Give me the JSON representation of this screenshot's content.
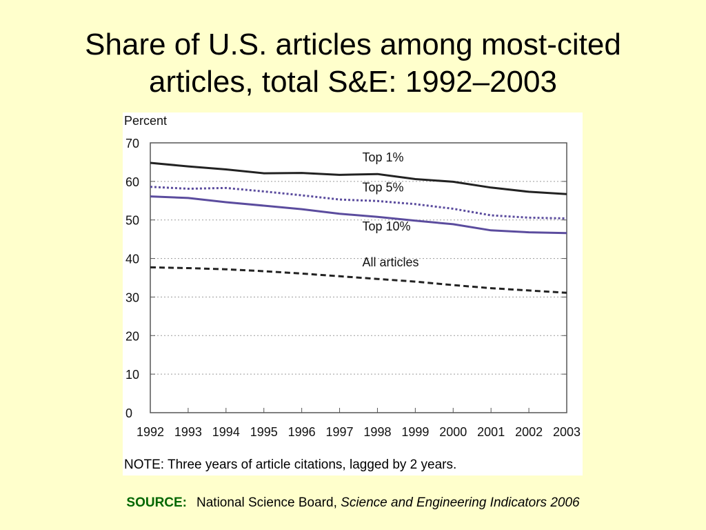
{
  "slide": {
    "title_line1": "Share of U.S. articles among most-cited",
    "title_line2": "articles, total S&E: 1992–2003",
    "source_label": "SOURCE:",
    "source_org": "National Science Board,",
    "source_publication": "Science and Engineering Indicators 2006"
  },
  "chart_data": {
    "type": "line",
    "ylabel": "Percent",
    "ylim": [
      0,
      70
    ],
    "yticks": [
      0,
      10,
      20,
      30,
      40,
      50,
      60,
      70
    ],
    "x": [
      1992,
      1993,
      1994,
      1995,
      1996,
      1997,
      1998,
      1999,
      2000,
      2001,
      2002,
      2003
    ],
    "grid": "horizontal dotted",
    "note": "NOTE: Three years of article citations, lagged by 2 years.",
    "series": [
      {
        "name": "Top 1%",
        "style": "solid",
        "color": "#222222",
        "values": [
          64.8,
          63.9,
          63.1,
          62.1,
          62.2,
          61.7,
          61.9,
          60.6,
          59.9,
          58.4,
          57.3,
          56.7
        ]
      },
      {
        "name": "Top 5%",
        "style": "dotted",
        "color": "#5b4c9e",
        "values": [
          58.6,
          58.1,
          58.3,
          57.4,
          56.4,
          55.3,
          54.9,
          54.1,
          52.9,
          51.2,
          50.6,
          50.4
        ]
      },
      {
        "name": "Top 10%",
        "style": "solid",
        "color": "#5b4c9e",
        "values": [
          56.1,
          55.7,
          54.6,
          53.7,
          52.8,
          51.6,
          50.8,
          49.8,
          48.9,
          47.3,
          46.8,
          46.6
        ]
      },
      {
        "name": "All articles",
        "style": "dashed",
        "color": "#222222",
        "values": [
          37.7,
          37.5,
          37.2,
          36.7,
          36.1,
          35.4,
          34.7,
          34.0,
          33.1,
          32.3,
          31.7,
          31.1
        ]
      }
    ]
  }
}
